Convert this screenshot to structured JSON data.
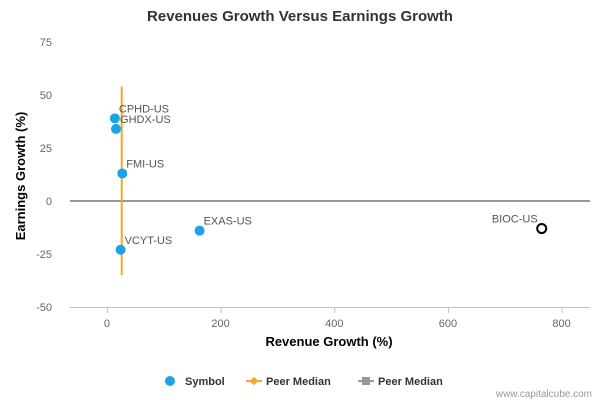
{
  "chart_data": {
    "type": "scatter",
    "title": "Revenues Growth Versus Earnings Growth",
    "xlabel": "Revenue Growth (%)",
    "ylabel": "Earnings Growth (%)",
    "xlim": [
      -65,
      850
    ],
    "ylim": [
      -50,
      75
    ],
    "xticks": [
      0,
      200,
      400,
      600,
      800
    ],
    "yticks": [
      -50,
      -25,
      0,
      25,
      50,
      75
    ],
    "points": [
      {
        "label": "CPHD-US",
        "x": 14,
        "y": 39,
        "style": "filled"
      },
      {
        "label": "GHDX-US",
        "x": 16,
        "y": 34,
        "style": "filled"
      },
      {
        "label": "FMI-US",
        "x": 27,
        "y": 13,
        "style": "filled"
      },
      {
        "label": "VCYT-US",
        "x": 24,
        "y": -23,
        "style": "filled"
      },
      {
        "label": "EXAS-US",
        "x": 163,
        "y": -14,
        "style": "filled"
      },
      {
        "label": "BIOC-US",
        "x": 765,
        "y": -13,
        "style": "hollow"
      }
    ],
    "peer_median_revenue": {
      "name": "Peer Median",
      "x": 26,
      "y_range": [
        -35,
        54
      ]
    },
    "peer_median_earnings": {
      "name": "Peer Median",
      "y": 0
    },
    "legend": [
      {
        "name": "Symbol",
        "marker": "circle"
      },
      {
        "name": "Peer Median",
        "marker": "diamond-line"
      },
      {
        "name": "Peer Median",
        "marker": "square-line"
      }
    ]
  },
  "colors": {
    "symbol": "#1aa3e8",
    "peer_median_revenue": "#f5a623",
    "peer_median_earnings": "#999999",
    "grid": "#c0c0c0"
  },
  "credit": "www.capitalcube.com"
}
